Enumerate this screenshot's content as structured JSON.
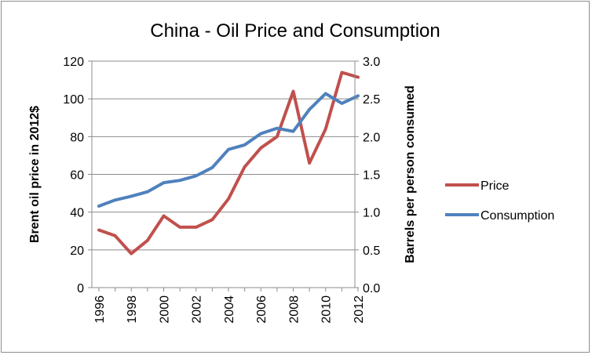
{
  "chart_data": {
    "type": "line",
    "title": "China - Oil Price and Consumption",
    "y_left_label": "Brent oil price in 2012$",
    "y_right_label": "Barrels per person consumed",
    "y_left_lim": [
      0,
      120
    ],
    "y_right_lim": [
      0,
      3.0
    ],
    "y_left_ticks": [
      "0",
      "20",
      "40",
      "60",
      "80",
      "100",
      "120"
    ],
    "y_right_ticks": [
      "0.0",
      "0.5",
      "1.0",
      "1.5",
      "2.0",
      "2.5",
      "3.0"
    ],
    "x": [
      1996,
      1997,
      1998,
      1999,
      2000,
      2001,
      2002,
      2003,
      2004,
      2005,
      2006,
      2007,
      2008,
      2009,
      2010,
      2011,
      2012
    ],
    "x_tick_labels": [
      "1996",
      "1998",
      "2000",
      "2002",
      "2004",
      "2006",
      "2008",
      "2010",
      "2012"
    ],
    "grid": "horizontal",
    "legend_position": "right",
    "series": [
      {
        "name": "Price",
        "axis": "left",
        "color": "#c0504d",
        "values": [
          30.5,
          27.5,
          18,
          25,
          38,
          32,
          32,
          36,
          47,
          64,
          74,
          80,
          104,
          66,
          84,
          114,
          111.5
        ]
      },
      {
        "name": "Consumption",
        "axis": "right",
        "color": "#4f81bd",
        "values": [
          1.08,
          1.16,
          1.21,
          1.27,
          1.39,
          1.42,
          1.48,
          1.59,
          1.83,
          1.89,
          2.04,
          2.11,
          2.07,
          2.36,
          2.57,
          2.44,
          2.54
        ]
      }
    ]
  }
}
